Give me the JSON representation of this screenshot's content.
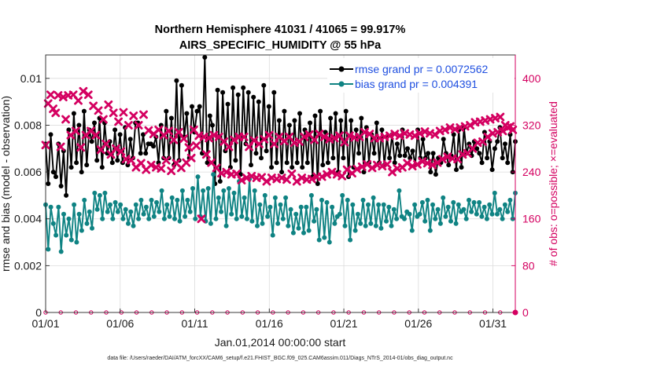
{
  "chart_data": {
    "type": "line",
    "title": "Northern Hemisphere 41031 / 41065 = 99.917%",
    "subtitle": "AIRS_SPECIFIC_HUMIDITY @ 55 hPa",
    "xlabel": "Jan.01,2014 00:00:00 start",
    "ylabel": "rmse and bias (model - observation)",
    "y2label": "# of obs: o=possible; ×=evaluated",
    "footnote": "data file: /Users/raeder/DAI/ATM_forcXX/CAM6_setup/f.e21.FHIST_BGC.f09_025.CAM6assim.011/Diags_NTrS_2014-01/obs_diag_output.nc",
    "x_ticks": [
      "01/01",
      "01/06",
      "01/11",
      "01/16",
      "01/21",
      "01/26",
      "01/31"
    ],
    "x_tick_days": [
      1,
      6,
      11,
      16,
      21,
      26,
      31
    ],
    "xlim": [
      1,
      32.5
    ],
    "ylim": [
      0,
      0.011
    ],
    "y_ticks": [
      "0",
      "0.002",
      "0.004",
      "0.006",
      "0.008",
      "0.01"
    ],
    "y_tick_values": [
      0,
      0.002,
      0.004,
      0.006,
      0.008,
      0.01
    ],
    "y2lim": [
      0,
      440
    ],
    "y2_ticks": [
      "0",
      "80",
      "160",
      "240",
      "320",
      "400"
    ],
    "y2_tick_values": [
      0,
      80,
      160,
      240,
      320,
      400
    ],
    "grid": true,
    "legend_position": "top-right",
    "series": [
      {
        "name": "rmse grand pr = 0.0072562",
        "axis": "left",
        "color": "#000000",
        "marker": "circle",
        "values": [
          0.0072,
          0.0055,
          0.0076,
          0.006,
          0.0058,
          0.0072,
          0.0054,
          0.0069,
          0.005,
          0.0078,
          0.0062,
          0.0085,
          0.0064,
          0.008,
          0.006,
          0.0086,
          0.0063,
          0.0078,
          0.0073,
          0.0081,
          0.0065,
          0.0083,
          0.0062,
          0.0081,
          0.0068,
          0.0073,
          0.0064,
          0.0078,
          0.0065,
          0.0076,
          0.0064,
          0.0079,
          0.0063,
          0.0074,
          0.0066,
          0.0081,
          0.0081,
          0.0068,
          0.0076,
          0.0068,
          0.0072,
          0.0072,
          0.0071,
          0.0075,
          0.0064,
          0.008,
          0.0066,
          0.0086,
          0.0066,
          0.0083,
          0.0063,
          0.0099,
          0.0065,
          0.0097,
          0.0075,
          0.0085,
          0.0066,
          0.0088,
          0.0077,
          0.0086,
          0.0088,
          0.0068,
          0.0109,
          0.0064,
          0.0084,
          0.008,
          0.0055,
          0.0095,
          0.0056,
          0.0094,
          0.0069,
          0.0089,
          0.0062,
          0.0096,
          0.0065,
          0.0093,
          0.0059,
          0.0096,
          0.0072,
          0.0094,
          0.0063,
          0.0092,
          0.0068,
          0.009,
          0.0066,
          0.0097,
          0.0069,
          0.0088,
          0.0062,
          0.0094,
          0.0064,
          0.0082,
          0.006,
          0.0086,
          0.0064,
          0.008,
          0.0062,
          0.0082,
          0.0064,
          0.0085,
          0.0062,
          0.0078,
          0.0064,
          0.0081,
          0.0058,
          0.0084,
          0.0055,
          0.0086,
          0.0063,
          0.0077,
          0.0064,
          0.0083,
          0.0066,
          0.0085,
          0.006,
          0.0082,
          0.0066,
          0.0086,
          0.0058,
          0.0082,
          0.0062,
          0.0078,
          0.0068,
          0.0083,
          0.006,
          0.0079,
          0.0064,
          0.0076,
          0.0068,
          0.0081,
          0.0064,
          0.0078,
          0.0063,
          0.0075,
          0.0066,
          0.0076,
          0.0064,
          0.0072,
          0.0067,
          0.0078,
          0.0067,
          0.007,
          0.0066,
          0.0069,
          0.0063,
          0.0078,
          0.0066,
          0.0074,
          0.0066,
          0.0068,
          0.006,
          0.0068,
          0.0059,
          0.0066,
          0.0064,
          0.0074,
          0.0068,
          0.0063,
          0.0067,
          0.0076,
          0.0061,
          0.0078,
          0.0062,
          0.0079,
          0.0068,
          0.0072,
          0.0067,
          0.0073,
          0.007,
          0.0068,
          0.0064,
          0.0077,
          0.0066,
          0.0073,
          0.0061,
          0.007,
          0.0073,
          0.0079,
          0.0066,
          0.0072,
          0.0064,
          0.0076,
          0.006,
          0.0073
        ]
      },
      {
        "name": "bias grand pr = 0.004391",
        "axis": "left",
        "color": "#0f8383",
        "marker": "circle",
        "values": [
          0.0046,
          0.0027,
          0.0045,
          0.0038,
          0.0033,
          0.0045,
          0.0026,
          0.0042,
          0.0033,
          0.004,
          0.0031,
          0.0046,
          0.003,
          0.0042,
          0.0035,
          0.0048,
          0.0038,
          0.0043,
          0.0036,
          0.0051,
          0.0044,
          0.005,
          0.004,
          0.0051,
          0.0043,
          0.0046,
          0.004,
          0.0047,
          0.0043,
          0.0046,
          0.004,
          0.0044,
          0.0038,
          0.0043,
          0.0037,
          0.0046,
          0.004,
          0.0048,
          0.0042,
          0.0045,
          0.004,
          0.0048,
          0.0041,
          0.0047,
          0.0043,
          0.0052,
          0.004,
          0.0046,
          0.0041,
          0.0049,
          0.004,
          0.0048,
          0.0039,
          0.0052,
          0.0041,
          0.0048,
          0.0043,
          0.0053,
          0.004,
          0.0058,
          0.0041,
          0.0052,
          0.0039,
          0.0053,
          0.0038,
          0.0059,
          0.004,
          0.0049,
          0.0043,
          0.0052,
          0.0037,
          0.0053,
          0.0042,
          0.0051,
          0.004,
          0.0056,
          0.0041,
          0.0049,
          0.004,
          0.0057,
          0.0039,
          0.0052,
          0.0037,
          0.0046,
          0.0038,
          0.005,
          0.0041,
          0.0045,
          0.0033,
          0.0049,
          0.0038,
          0.0046,
          0.004,
          0.0049,
          0.0037,
          0.0044,
          0.0034,
          0.0042,
          0.0036,
          0.0045,
          0.0034,
          0.0045,
          0.0035,
          0.005,
          0.0039,
          0.0044,
          0.0031,
          0.0048,
          0.0032,
          0.0047,
          0.003,
          0.0045,
          0.0038,
          0.0041,
          0.0042,
          0.005,
          0.0037,
          0.0048,
          0.0031,
          0.0046,
          0.0035,
          0.0042,
          0.0038,
          0.0048,
          0.0037,
          0.0046,
          0.0038,
          0.0049,
          0.0037,
          0.0046,
          0.0036,
          0.0046,
          0.0039,
          0.0045,
          0.0037,
          0.0044,
          0.004,
          0.0052,
          0.0041,
          0.004,
          0.0043,
          0.0042,
          0.0035,
          0.0046,
          0.0041,
          0.0042,
          0.0047,
          0.0039,
          0.0048,
          0.0035,
          0.0046,
          0.004,
          0.0044,
          0.0038,
          0.0049,
          0.0041,
          0.0045,
          0.0039,
          0.0047,
          0.0038,
          0.0046,
          0.0043,
          0.0044,
          0.004,
          0.0048,
          0.0043,
          0.0047,
          0.0042,
          0.0047,
          0.0041,
          0.0045,
          0.004,
          0.0046,
          0.0042,
          0.0051,
          0.0042,
          0.0044,
          0.004,
          0.0046,
          0.0043,
          0.0048,
          0.004,
          0.0051
        ]
      },
      {
        "name": "obs possible",
        "axis": "right",
        "color": "#d40060",
        "marker": "circle",
        "values": [
          0,
          0,
          0,
          0,
          0,
          0,
          0,
          0,
          0,
          0,
          0,
          0,
          0,
          0,
          0,
          0,
          0,
          0,
          0,
          0,
          0,
          0,
          0,
          0,
          0,
          0,
          0,
          0,
          0,
          0,
          0,
          0
        ]
      },
      {
        "name": "obs evaluated",
        "axis": "right",
        "color": "#d40060",
        "marker": "cross",
        "values": [
          286,
          357,
          372,
          348,
          341,
          371,
          283,
          368,
          330,
          371,
          303,
          372,
          310,
          362,
          282,
          378,
          303,
          372,
          310,
          353,
          303,
          345,
          278,
          330,
          288,
          355,
          270,
          341,
          280,
          326,
          275,
          342,
          262,
          320,
          260,
          336,
          248,
          320,
          255,
          338,
          244,
          311,
          252,
          305,
          248,
          312,
          246,
          303,
          260,
          310,
          242,
          295,
          255,
          308,
          247,
          297,
          256,
          282,
          264,
          312,
          285,
          302,
          160,
          300,
          270,
          298,
          256,
          303,
          247,
          300,
          238,
          292,
          240,
          283,
          236,
          295,
          237,
          300,
          226,
          300,
          230,
          283,
          233,
          294,
          230,
          288,
          231,
          296,
          224,
          303,
          230,
          288,
          228,
          300,
          230,
          293,
          227,
          300,
          237,
          290,
          224,
          292,
          230,
          300,
          227,
          304,
          228,
          295,
          232,
          305,
          232,
          300,
          236,
          296,
          240,
          298,
          236,
          302,
          233,
          291,
          244,
          302,
          238,
          299,
          245,
          300,
          249,
          308,
          253,
          305,
          247,
          298,
          252,
          298,
          250,
          300,
          253,
          302,
          240,
          305,
          246,
          302,
          248,
          306,
          255,
          304,
          250,
          302,
          253,
          306,
          258,
          309,
          255,
          306,
          252,
          304,
          256,
          310,
          262,
          312,
          266,
          316,
          263,
          313,
          262,
          316,
          270,
          318,
          272,
          320,
          280,
          325,
          290,
          326,
          292,
          328,
          300,
          330,
          306,
          332,
          308,
          334,
          310,
          320,
          316,
          318,
          312
        ]
      }
    ]
  }
}
